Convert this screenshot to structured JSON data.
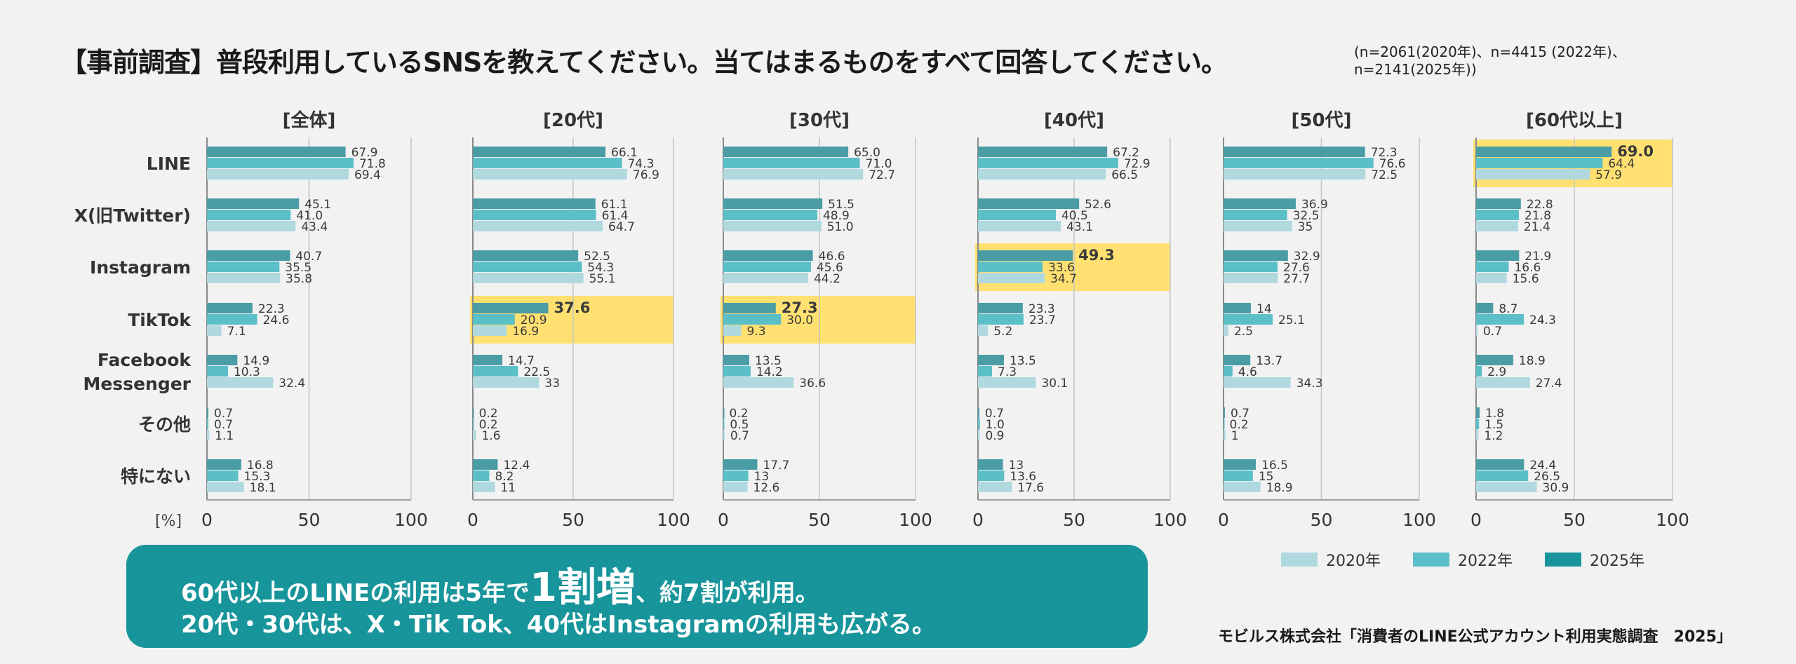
{
  "title": "【事前調査】普段利用しているSNSを教えてください。当てはまるものをすべて回答してください。",
  "sample_note": "(n=2061(2020年)、n=4415 (2022年)、\nn=2141(2025年))",
  "unit_label": "[%]",
  "callout": {
    "line1_a": "60代以上のLINEの利用は5年で",
    "line1_big": "1割増",
    "line1_b": "、約7割が利用。",
    "line2": "20代・30代は、X・Tik Tok、40代はInstagramの利用も広がる。"
  },
  "source": "モビルス株式会社「消費者のLINE公式アカウント利用実態調査　2025」",
  "colors": {
    "2025年": "#4a9ca5",
    "2022年": "#5bbfc8",
    "2020年": "#b0d9df",
    "legend_2025": "#17959b",
    "highlight": "#ffe070"
  },
  "legend": [
    {
      "name": "2020年",
      "color": "#b0d9df"
    },
    {
      "name": "2022年",
      "color": "#5bbfc8"
    },
    {
      "name": "2025年",
      "color": "#17959b"
    }
  ],
  "chart_data": {
    "type": "bar",
    "orientation": "horizontal",
    "categories": [
      "LINE",
      "X(旧Twitter)",
      "Instagram",
      "TikTok",
      "Facebook\nMessenger",
      "その他",
      "特にない"
    ],
    "xlim": [
      0,
      100
    ],
    "xticks": [
      "0",
      "50",
      "100"
    ],
    "grid": true,
    "legend_position": "bottom-right",
    "series_order": [
      "2025年",
      "2022年",
      "2020年"
    ],
    "panels": [
      {
        "title": "[全体]",
        "highlight": null,
        "series": [
          {
            "name": "2025年",
            "values": [
              67.9,
              45.1,
              40.7,
              22.3,
              14.9,
              0.7,
              16.8
            ],
            "labels": [
              "67.9",
              "45.1",
              "40.7",
              "22.3",
              "14.9",
              "0.7",
              "16.8"
            ]
          },
          {
            "name": "2022年",
            "values": [
              71.8,
              41.0,
              35.5,
              24.6,
              10.3,
              0.7,
              15.3
            ],
            "labels": [
              "71.8",
              "41.0",
              "35.5",
              "24.6",
              "10.3",
              "0.7",
              "15.3"
            ]
          },
          {
            "name": "2020年",
            "values": [
              69.4,
              43.4,
              35.8,
              7.1,
              32.4,
              1.1,
              18.1
            ],
            "labels": [
              "69.4",
              "43.4",
              "35.8",
              "7.1",
              "32.4",
              "1.1",
              "18.1"
            ]
          }
        ]
      },
      {
        "title": "[20代]",
        "highlight": "TikTok",
        "series": [
          {
            "name": "2025年",
            "values": [
              66.1,
              61.1,
              52.5,
              37.6,
              14.7,
              0.2,
              12.4
            ],
            "labels": [
              "66.1",
              "61.1",
              "52.5",
              "37.6",
              "14.7",
              "0.2",
              "12.4"
            ]
          },
          {
            "name": "2022年",
            "values": [
              74.3,
              61.4,
              54.3,
              20.9,
              22.5,
              0.2,
              8.2
            ],
            "labels": [
              "74.3",
              "61.4",
              "54.3",
              "20.9",
              "22.5",
              "0.2",
              "8.2"
            ]
          },
          {
            "name": "2020年",
            "values": [
              76.9,
              64.7,
              55.1,
              16.9,
              33,
              1.6,
              11
            ],
            "labels": [
              "76.9",
              "64.7",
              "55.1",
              "16.9",
              "33",
              "1.6",
              "11"
            ]
          }
        ]
      },
      {
        "title": "[30代]",
        "highlight": "TikTok",
        "series": [
          {
            "name": "2025年",
            "values": [
              65.0,
              51.5,
              46.6,
              27.3,
              13.5,
              0.2,
              17.7
            ],
            "labels": [
              "65.0",
              "51.5",
              "46.6",
              "27.3",
              "13.5",
              "0.2",
              "17.7"
            ]
          },
          {
            "name": "2022年",
            "values": [
              71.0,
              48.9,
              45.6,
              30.0,
              14.2,
              0.5,
              13
            ],
            "labels": [
              "71.0",
              "48.9",
              "45.6",
              "30.0",
              "14.2",
              "0.5",
              "13"
            ]
          },
          {
            "name": "2020年",
            "values": [
              72.7,
              51.0,
              44.2,
              9.3,
              36.6,
              0.7,
              12.6
            ],
            "labels": [
              "72.7",
              "51.0",
              "44.2",
              "9.3",
              "36.6",
              "0.7",
              "12.6"
            ]
          }
        ]
      },
      {
        "title": "[40代]",
        "highlight": "Instagram",
        "series": [
          {
            "name": "2025年",
            "values": [
              67.2,
              52.6,
              49.3,
              23.3,
              13.5,
              0.7,
              13
            ],
            "labels": [
              "67.2",
              "52.6",
              "49.3",
              "23.3",
              "13.5",
              "0.7",
              "13"
            ]
          },
          {
            "name": "2022年",
            "values": [
              72.9,
              40.5,
              33.6,
              23.7,
              7.3,
              1.0,
              13.6
            ],
            "labels": [
              "72.9",
              "40.5",
              "33.6",
              "23.7",
              "7.3",
              "1.0",
              "13.6"
            ]
          },
          {
            "name": "2020年",
            "values": [
              66.5,
              43.1,
              34.7,
              5.2,
              30.1,
              0.9,
              17.6
            ],
            "labels": [
              "66.5",
              "43.1",
              "34.7",
              "5.2",
              "30.1",
              "0.9",
              "17.6"
            ]
          }
        ]
      },
      {
        "title": "[50代]",
        "highlight": null,
        "series": [
          {
            "name": "2025年",
            "values": [
              72.3,
              36.9,
              32.9,
              14,
              13.7,
              0.7,
              16.5
            ],
            "labels": [
              "72.3",
              "36.9",
              "32.9",
              "14",
              "13.7",
              "0.7",
              "16.5"
            ]
          },
          {
            "name": "2022年",
            "values": [
              76.6,
              32.5,
              27.6,
              25.1,
              4.6,
              0.2,
              15
            ],
            "labels": [
              "76.6",
              "32.5",
              "27.6",
              "25.1",
              "4.6",
              "0.2",
              "15"
            ]
          },
          {
            "name": "2020年",
            "values": [
              72.5,
              35,
              27.7,
              2.5,
              34.3,
              1,
              18.9
            ],
            "labels": [
              "72.5",
              "35",
              "27.7",
              "2.5",
              "34.3",
              "1",
              "18.9"
            ]
          }
        ]
      },
      {
        "title": "[60代以上]",
        "highlight": "LINE",
        "series": [
          {
            "name": "2025年",
            "values": [
              69.0,
              22.8,
              21.9,
              8.7,
              18.9,
              1.8,
              24.4
            ],
            "labels": [
              "69.0",
              "22.8",
              "21.9",
              "8.7",
              "18.9",
              "1.8",
              "24.4"
            ]
          },
          {
            "name": "2022年",
            "values": [
              64.4,
              21.8,
              16.6,
              24.3,
              2.9,
              1.5,
              26.5
            ],
            "labels": [
              "64.4",
              "21.8",
              "16.6",
              "24.3",
              "2.9",
              "1.5",
              "26.5"
            ]
          },
          {
            "name": "2020年",
            "values": [
              57.9,
              21.4,
              15.6,
              0.7,
              27.4,
              1.2,
              30.9
            ],
            "labels": [
              "57.9",
              "21.4",
              "15.6",
              "0.7",
              "27.4",
              "1.2",
              "30.9"
            ]
          }
        ]
      }
    ]
  }
}
